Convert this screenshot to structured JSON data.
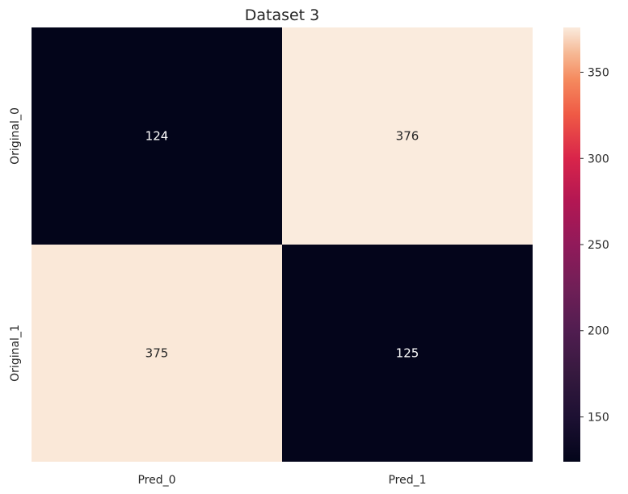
{
  "chart_data": {
    "type": "heatmap",
    "title": "Dataset 3",
    "x_categories": [
      "Pred_0",
      "Pred_1"
    ],
    "y_categories": [
      "Original_0",
      "Original_1"
    ],
    "values": [
      [
        124,
        376
      ],
      [
        375,
        125
      ]
    ],
    "colorbar": {
      "min": 124,
      "max": 376,
      "ticks": [
        150,
        200,
        250,
        300,
        350
      ],
      "colormap": "rocket"
    },
    "grid": false
  }
}
